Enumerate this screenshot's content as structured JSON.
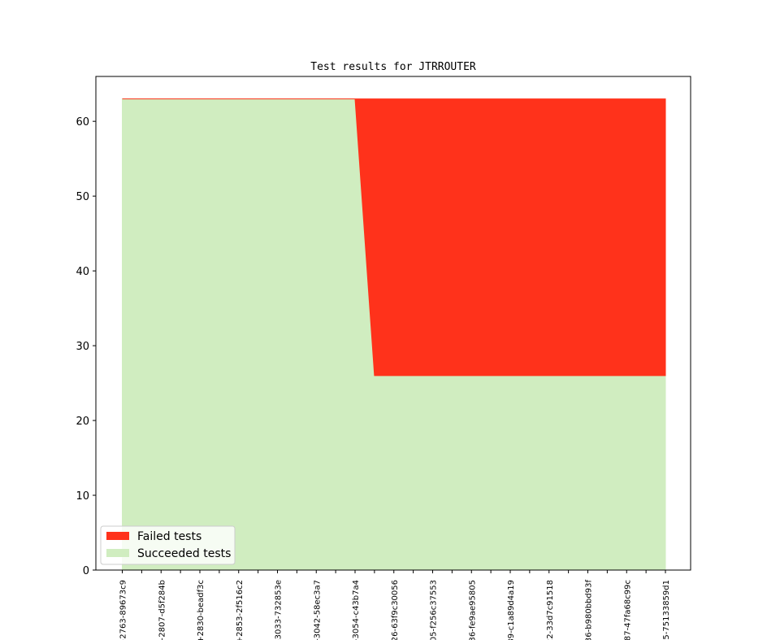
{
  "chart_data": {
    "type": "area",
    "title": "Test results for JTRROUTER",
    "xlabel": "",
    "ylabel": "",
    "ylim": [
      0,
      66
    ],
    "yticks": [
      0,
      10,
      20,
      30,
      40,
      50,
      60
    ],
    "x_points": 29,
    "xtick_labels": [
      "+2763-89673c9",
      "+2807-d5f284b",
      "+2830-beadf3c",
      "+2853-2f516c2",
      "-3033-732853e",
      "-3042-58ec3a7",
      "-3054-c43b7a4",
      "26-63f9c30056",
      "05-f256c37553",
      "36-fe9ae95805",
      "89-c1a89d4a19",
      "22-33d7c91518",
      "36-b980bbd93f",
      "87-47fa68c99c",
      "55-75133859d1"
    ],
    "series": [
      {
        "name": "Succeeded tests",
        "color": "#d0edc0",
        "values": [
          63,
          63,
          63,
          63,
          63,
          63,
          63,
          63,
          63,
          63,
          63,
          63,
          63,
          26,
          26,
          26,
          26,
          26,
          26,
          26,
          26,
          26,
          26,
          26,
          26,
          26,
          26,
          26,
          26
        ]
      },
      {
        "name": "Failed tests",
        "color": "#ff321b",
        "values": [
          0,
          0,
          0,
          0,
          0,
          0,
          0,
          0,
          0,
          0,
          0,
          0,
          0,
          37,
          37,
          37,
          37,
          37,
          37,
          37,
          37,
          37,
          37,
          37,
          37,
          37,
          37,
          37,
          37
        ]
      }
    ],
    "legend": {
      "position": "lower-left",
      "entries": [
        "Failed tests",
        "Succeeded tests"
      ]
    },
    "grid": false
  }
}
